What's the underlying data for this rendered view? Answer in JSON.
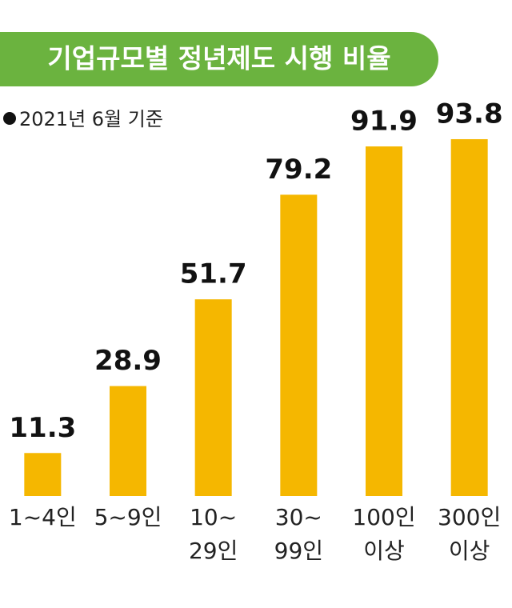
{
  "chart_data": {
    "type": "bar",
    "title": "기업규모별 정년제도 시행 비율",
    "subtitle": "2021년 6월 기준",
    "categories": [
      [
        "1~4인"
      ],
      [
        "5~9인"
      ],
      [
        "10~",
        "29인"
      ],
      [
        "30~",
        "99인"
      ],
      [
        "100인",
        "이상"
      ],
      [
        "300인",
        "이상"
      ]
    ],
    "values": [
      11.3,
      28.9,
      51.7,
      79.2,
      91.9,
      93.8
    ],
    "color": "#f5b700",
    "title_color": "#6bb33f"
  }
}
